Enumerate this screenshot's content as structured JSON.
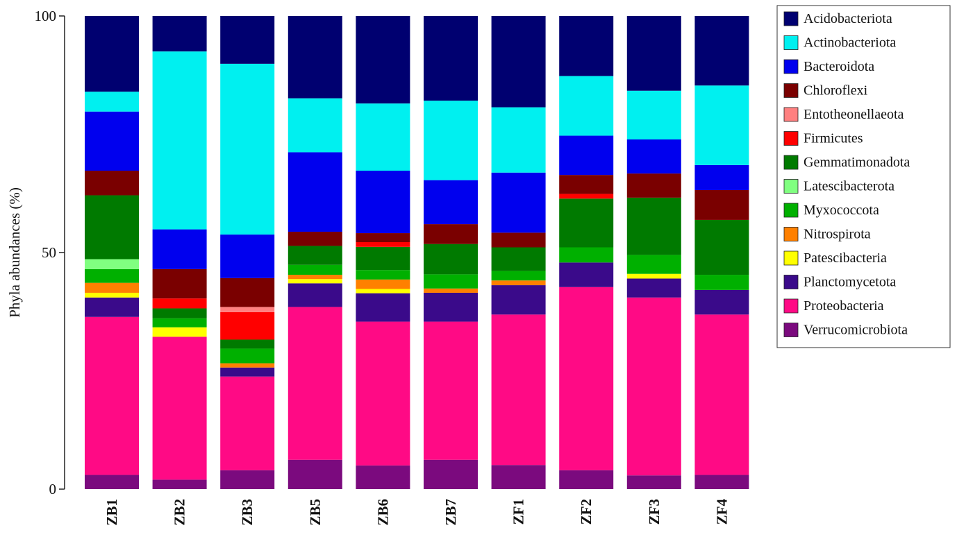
{
  "chart_data": {
    "type": "bar",
    "stacked": true,
    "title": "",
    "xlabel": "",
    "ylabel": "Phyla abundances (%)",
    "ylim": [
      0,
      100
    ],
    "yticks": [
      0,
      50,
      100
    ],
    "grid": false,
    "legend_position": "right",
    "categories": [
      "ZB1",
      "ZB2",
      "ZB3",
      "ZB5",
      "ZB6",
      "ZB7",
      "ZF1",
      "ZF2",
      "ZF3",
      "ZF4"
    ],
    "series": [
      {
        "name": "Verrucomicrobiota",
        "color": "#7B0A7E",
        "values": [
          3.0,
          2.0,
          4.0,
          6.2,
          5.0,
          6.2,
          5.1,
          4.0,
          2.9,
          3.0
        ]
      },
      {
        "name": "Proteobacteria",
        "color": "#FF0A85",
        "values": [
          33.4,
          30.2,
          19.8,
          32.3,
          30.4,
          29.2,
          31.8,
          38.7,
          37.6,
          33.9
        ]
      },
      {
        "name": "Planctomycetota",
        "color": "#3A0A8A",
        "values": [
          4.1,
          0,
          1.9,
          5.0,
          6.0,
          6.1,
          6.2,
          5.2,
          4.0,
          5.2
        ]
      },
      {
        "name": "Patescibacteria",
        "color": "#FFFF00",
        "values": [
          1.0,
          2.0,
          0,
          0.9,
          0.9,
          0,
          0,
          0,
          1.0,
          0
        ]
      },
      {
        "name": "Nitrospirota",
        "color": "#FF8000",
        "values": [
          2.1,
          0,
          0.9,
          0.9,
          2.0,
          0.9,
          1.0,
          0,
          0,
          0
        ]
      },
      {
        "name": "Myxococcota",
        "color": "#00B000",
        "values": [
          2.9,
          1.9,
          3.1,
          2.1,
          2.0,
          3.0,
          2.0,
          3.2,
          4.0,
          3.2
        ]
      },
      {
        "name": "Latescibacterota",
        "color": "#80FF80",
        "values": [
          2.1,
          0,
          0,
          0,
          0,
          0,
          0,
          0,
          0,
          0
        ]
      },
      {
        "name": "Gemmatimonadota",
        "color": "#007A00",
        "values": [
          13.5,
          2.1,
          1.9,
          4.0,
          4.9,
          6.4,
          5.0,
          10.3,
          12.1,
          11.6
        ]
      },
      {
        "name": "Firmicutes",
        "color": "#FF0000",
        "values": [
          0,
          2.1,
          5.8,
          0,
          1.0,
          0,
          0,
          1.0,
          0,
          0
        ]
      },
      {
        "name": "Entotheonellaeota",
        "color": "#FF8080",
        "values": [
          0,
          0,
          1.1,
          0,
          0,
          0,
          0,
          0,
          0,
          0
        ]
      },
      {
        "name": "Chloroflexi",
        "color": "#7A0000",
        "values": [
          5.2,
          6.2,
          6.1,
          3.0,
          1.9,
          4.2,
          3.1,
          4.0,
          5.1,
          6.3
        ]
      },
      {
        "name": "Bacteroidota",
        "color": "#0000EE",
        "values": [
          12.5,
          8.4,
          9.2,
          16.8,
          13.2,
          9.3,
          12.7,
          8.3,
          7.2,
          5.3
        ]
      },
      {
        "name": "Actinobacteriota",
        "color": "#00F0F0",
        "values": [
          4.2,
          37.6,
          36.1,
          11.4,
          14.2,
          16.8,
          13.8,
          12.6,
          10.3,
          16.8
        ]
      },
      {
        "name": "Acidobacteriota",
        "color": "#000070",
        "values": [
          16.0,
          7.5,
          10.1,
          17.4,
          18.5,
          17.9,
          19.3,
          12.7,
          15.8,
          14.7
        ]
      }
    ],
    "legend_order": [
      "Acidobacteriota",
      "Actinobacteriota",
      "Bacteroidota",
      "Chloroflexi",
      "Entotheonellaeota",
      "Firmicutes",
      "Gemmatimonadota",
      "Latescibacterota",
      "Myxococcota",
      "Nitrospirota",
      "Patescibacteria",
      "Planctomycetota",
      "Proteobacteria",
      "Verrucomicrobiota"
    ]
  }
}
